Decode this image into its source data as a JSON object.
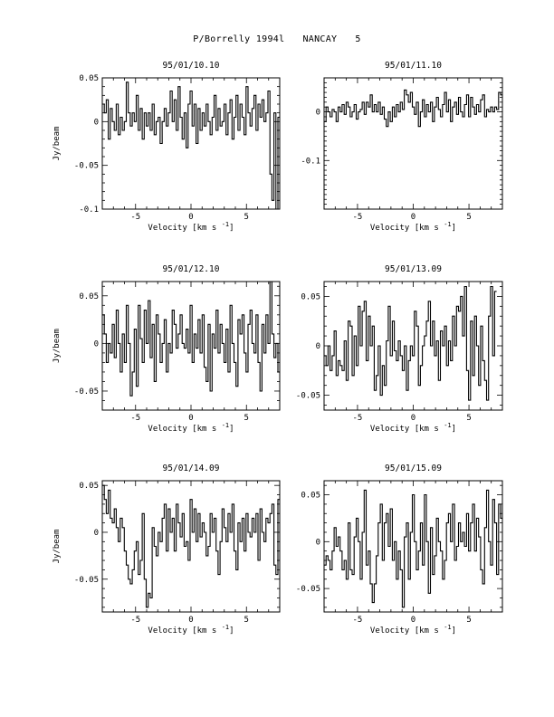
{
  "header": {
    "object": "P/Borrelly 1994l",
    "station": "NANCAY",
    "page": "5"
  },
  "chart_data": [
    {
      "type": "line",
      "title": "95/01/10.10",
      "xlabel": "Velocity [km s",
      "xlabel_sup": "-1",
      "xlabel_end": "]",
      "ylabel": "Jy/beam",
      "xlim": [
        -8,
        8
      ],
      "ylim": [
        -0.1,
        0.05
      ],
      "xticks": [
        -5,
        0,
        5
      ],
      "yticks": [
        -0.1,
        -0.05,
        0,
        0.05
      ],
      "ytick_labels": [
        "-0.1",
        "-0.05",
        "0",
        "0.05"
      ],
      "series": [
        {
          "x_step": 0.18,
          "x0": -8.0,
          "y": [
            0.02,
            0.01,
            0.025,
            -0.02,
            0.015,
            0.0,
            -0.01,
            0.02,
            -0.015,
            0.005,
            -0.01,
            0.0,
            0.045,
            0.01,
            -0.005,
            0.01,
            0.0,
            0.03,
            -0.01,
            0.015,
            -0.02,
            0.01,
            -0.005,
            0.01,
            -0.01,
            0.02,
            -0.015,
            0.0,
            0.005,
            -0.025,
            0.0,
            0.015,
            -0.005,
            0.01,
            0.035,
            0.0,
            0.025,
            -0.01,
            0.04,
            0.005,
            -0.02,
            0.01,
            -0.03,
            0.02,
            0.035,
            -0.005,
            0.02,
            -0.025,
            0.015,
            -0.01,
            0.01,
            -0.005,
            0.02,
            0.0,
            -0.015,
            0.005,
            0.03,
            -0.01,
            0.015,
            -0.005,
            0.0,
            0.02,
            -0.015,
            0.01,
            0.025,
            -0.02,
            0.005,
            0.03,
            -0.01,
            0.02,
            0.005,
            -0.015,
            0.04,
            0.01,
            -0.005,
            0.015,
            0.03,
            -0.01,
            0.02,
            0.005,
            0.025,
            0.0,
            0.01,
            0.035,
            -0.06,
            -0.09,
            0.01,
            -0.1,
            0.005
          ]
        }
      ]
    },
    {
      "type": "line",
      "title": "95/01/11.10",
      "xlabel": "Velocity [km s",
      "xlabel_sup": "-1",
      "xlabel_end": "]",
      "ylabel": "",
      "xlim": [
        -8,
        8
      ],
      "ylim": [
        -0.2,
        0.07
      ],
      "xticks": [
        -5,
        0,
        5
      ],
      "yticks": [
        -0.1,
        0
      ],
      "ytick_labels": [
        "-0.1",
        "0"
      ],
      "series": [
        {
          "x_step": 0.18,
          "x0": -8.0,
          "y": [
            -0.02,
            0.01,
            0.0,
            -0.01,
            0.005,
            0.0,
            -0.02,
            0.01,
            0.0,
            0.015,
            -0.005,
            0.02,
            0.01,
            -0.01,
            0.0,
            0.015,
            -0.015,
            0.0,
            0.005,
            0.02,
            -0.005,
            0.02,
            0.01,
            0.035,
            0.0,
            0.015,
            0.0,
            0.02,
            -0.005,
            0.01,
            -0.015,
            -0.03,
            0.0,
            -0.02,
            0.01,
            -0.01,
            0.015,
            0.0,
            0.02,
            0.005,
            0.045,
            0.035,
            0.02,
            0.04,
            0.01,
            -0.005,
            0.02,
            -0.03,
            0.0,
            0.025,
            -0.01,
            0.015,
            0.0,
            0.02,
            -0.02,
            0.01,
            0.03,
            0.005,
            -0.01,
            0.015,
            0.04,
            0.0,
            0.025,
            -0.02,
            0.01,
            0.02,
            -0.005,
            0.03,
            0.0,
            -0.01,
            0.015,
            0.035,
            -0.01,
            0.03,
            0.01,
            -0.005,
            0.015,
            0.0,
            0.025,
            0.035,
            -0.01,
            0.005,
            0.0,
            0.01,
            0.0,
            0.01,
            0.005,
            0.04,
            0.035
          ]
        }
      ]
    },
    {
      "type": "line",
      "title": "95/01/12.10",
      "xlabel": "Velocity [km s",
      "xlabel_sup": "-1",
      "xlabel_end": "]",
      "ylabel": "Jy/beam",
      "xlim": [
        -8,
        8
      ],
      "ylim": [
        -0.07,
        0.065
      ],
      "xticks": [
        -5,
        0,
        5
      ],
      "yticks": [
        -0.05,
        0,
        0.05
      ],
      "ytick_labels": [
        "-0.05",
        "0",
        "0.05"
      ],
      "series": [
        {
          "x_step": 0.18,
          "x0": -8.0,
          "y": [
            0.03,
            0.01,
            -0.02,
            0.0,
            -0.01,
            0.02,
            -0.015,
            0.035,
            0.0,
            -0.03,
            0.01,
            -0.02,
            0.04,
            0.0,
            -0.055,
            -0.03,
            0.015,
            -0.045,
            0.04,
            0.005,
            -0.02,
            0.035,
            0.0,
            0.045,
            -0.015,
            0.02,
            -0.04,
            0.03,
            0.01,
            -0.02,
            0.0,
            0.025,
            -0.03,
            0.0,
            -0.01,
            0.035,
            0.02,
            -0.005,
            0.01,
            0.03,
            0.0,
            -0.005,
            0.015,
            -0.01,
            0.04,
            -0.02,
            0.01,
            -0.005,
            0.025,
            -0.01,
            0.03,
            -0.025,
            -0.04,
            0.02,
            -0.05,
            0.01,
            -0.005,
            0.035,
            -0.01,
            0.02,
            0.0,
            -0.02,
            0.015,
            -0.03,
            0.04,
            0.0,
            -0.02,
            -0.045,
            0.025,
            0.01,
            0.03,
            -0.01,
            -0.03,
            0.02,
            0.035,
            0.0,
            -0.01,
            0.03,
            -0.02,
            -0.05,
            0.02,
            -0.01,
            0.03,
            0.0,
            0.065,
            0.01,
            -0.015,
            0.0,
            -0.03
          ]
        }
      ]
    },
    {
      "type": "line",
      "title": "95/01/13.09",
      "xlabel": "Velocity [km s",
      "xlabel_sup": "-1",
      "xlabel_end": "]",
      "ylabel": "",
      "xlim": [
        -8,
        8
      ],
      "ylim": [
        -0.065,
        0.065
      ],
      "xticks": [
        -5,
        0,
        5
      ],
      "yticks": [
        -0.05,
        0,
        0.05
      ],
      "ytick_labels": [
        "-0.05",
        "0",
        "0.05"
      ],
      "series": [
        {
          "x_step": 0.18,
          "x0": -8.0,
          "y": [
            -0.01,
            -0.02,
            0.0,
            -0.025,
            -0.01,
            0.015,
            -0.03,
            -0.015,
            -0.02,
            -0.025,
            0.005,
            -0.035,
            0.025,
            0.02,
            -0.03,
            0.01,
            -0.02,
            0.04,
            0.0,
            0.035,
            0.045,
            -0.015,
            0.03,
            0.0,
            0.02,
            -0.045,
            -0.03,
            0.0,
            -0.05,
            -0.02,
            -0.04,
            0.005,
            0.04,
            -0.01,
            0.025,
            -0.005,
            -0.015,
            0.005,
            -0.01,
            -0.025,
            0.0,
            -0.045,
            -0.015,
            0.0,
            -0.01,
            0.035,
            0.02,
            -0.04,
            -0.02,
            0.0,
            0.01,
            0.025,
            0.045,
            0.0,
            0.025,
            -0.01,
            0.005,
            -0.035,
            0.015,
            0.0,
            0.02,
            -0.02,
            0.005,
            -0.015,
            0.03,
            0.0,
            0.04,
            0.035,
            0.05,
            0.01,
            0.06,
            -0.025,
            -0.055,
            0.025,
            -0.03,
            0.03,
            0.0,
            -0.04,
            0.02,
            -0.015,
            -0.035,
            -0.055,
            0.03,
            0.06,
            -0.01,
            0.055
          ]
        }
      ]
    },
    {
      "type": "line",
      "title": "95/01/14.09",
      "xlabel": "Velocity [km s",
      "xlabel_sup": "-1",
      "xlabel_end": "]",
      "ylabel": "Jy/beam",
      "xlim": [
        -8,
        8
      ],
      "ylim": [
        -0.085,
        0.055
      ],
      "xticks": [
        -5,
        0,
        5
      ],
      "yticks": [
        -0.05,
        0,
        0.05
      ],
      "ytick_labels": [
        "-0.05",
        "0",
        "0.05"
      ],
      "series": [
        {
          "x_step": 0.18,
          "x0": -8.0,
          "y": [
            0.05,
            0.035,
            0.02,
            0.045,
            0.015,
            0.01,
            0.025,
            0.005,
            -0.01,
            0.015,
            0.005,
            -0.02,
            -0.035,
            -0.05,
            -0.055,
            -0.04,
            -0.02,
            -0.01,
            -0.045,
            -0.03,
            0.02,
            -0.05,
            -0.08,
            -0.065,
            -0.07,
            0.005,
            -0.015,
            -0.025,
            0.0,
            -0.01,
            0.015,
            0.03,
            -0.02,
            0.025,
            0.0,
            0.015,
            -0.02,
            0.03,
            0.01,
            -0.005,
            0.02,
            -0.015,
            -0.01,
            -0.03,
            0.035,
            0.0,
            0.025,
            -0.01,
            0.02,
            -0.005,
            0.01,
            0.0,
            -0.025,
            -0.015,
            0.02,
            0.0,
            0.015,
            -0.02,
            -0.045,
            -0.01,
            0.025,
            0.005,
            -0.01,
            0.02,
            0.0,
            0.03,
            -0.02,
            -0.04,
            0.01,
            -0.01,
            0.015,
            -0.02,
            0.02,
            0.0,
            -0.005,
            0.015,
            0.0,
            0.02,
            -0.03,
            0.025,
            0.0,
            -0.01,
            0.015,
            0.01,
            0.02,
            0.03,
            -0.035,
            -0.045,
            0.035
          ]
        }
      ]
    },
    {
      "type": "line",
      "title": "95/01/15.09",
      "xlabel": "Velocity [km s",
      "xlabel_sup": "-1",
      "xlabel_end": "]",
      "ylabel": "",
      "xlim": [
        -8,
        8
      ],
      "ylim": [
        -0.075,
        0.065
      ],
      "xticks": [
        -5,
        0,
        5
      ],
      "yticks": [
        -0.05,
        0,
        0.05
      ],
      "ytick_labels": [
        "-0.05",
        "0",
        "0.05"
      ],
      "series": [
        {
          "x_step": 0.18,
          "x0": -8.0,
          "y": [
            -0.025,
            -0.015,
            -0.02,
            -0.03,
            -0.01,
            0.015,
            -0.005,
            0.005,
            -0.01,
            -0.03,
            -0.02,
            -0.04,
            0.02,
            -0.03,
            -0.035,
            0.005,
            0.025,
            0.0,
            -0.04,
            0.01,
            0.055,
            -0.025,
            -0.01,
            -0.045,
            -0.065,
            -0.045,
            -0.015,
            0.02,
            0.04,
            -0.02,
            0.02,
            0.03,
            -0.005,
            0.035,
            -0.02,
            0.0,
            -0.04,
            -0.01,
            -0.03,
            -0.07,
            0.005,
            0.02,
            -0.04,
            0.01,
            0.05,
            0.0,
            -0.03,
            -0.01,
            0.02,
            -0.025,
            0.05,
            0.0,
            -0.055,
            0.015,
            -0.035,
            -0.015,
            0.025,
            0.0,
            -0.01,
            -0.04,
            -0.02,
            0.02,
            0.03,
            0.0,
            0.04,
            -0.02,
            -0.005,
            0.02,
            0.0,
            0.01,
            -0.005,
            0.03,
            -0.01,
            0.02,
            0.04,
            -0.01,
            0.025,
            0.005,
            -0.03,
            -0.045,
            0.015,
            0.055,
            0.0,
            -0.025,
            0.045,
            0.02,
            -0.035,
            0.04,
            0.025
          ]
        }
      ]
    }
  ]
}
